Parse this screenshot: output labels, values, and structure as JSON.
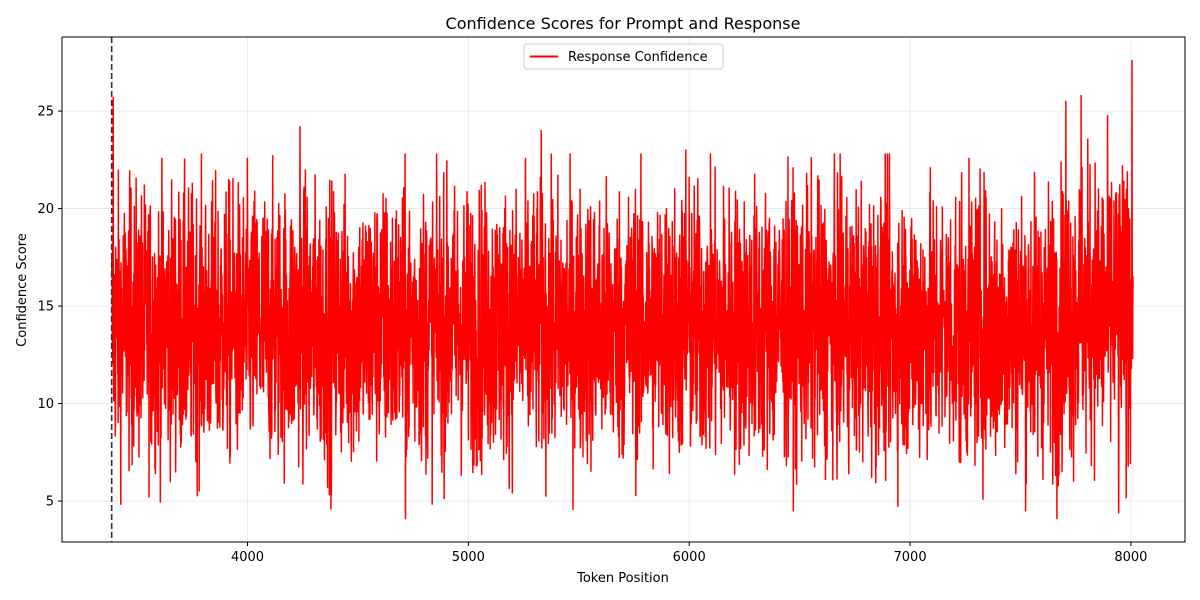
{
  "chart_data": {
    "type": "line",
    "title": "Confidence Scores for Prompt and Response",
    "xlabel": "Token Position",
    "ylabel": "Confidence Score",
    "xlim": [
      3160,
      8245
    ],
    "ylim": [
      2.9,
      28.8
    ],
    "xticks": [
      4000,
      5000,
      6000,
      7000,
      8000
    ],
    "yticks": [
      5,
      10,
      15,
      20,
      25
    ],
    "grid": true,
    "legend_position": "top-center",
    "vline": {
      "x": 3385,
      "style": "dashed",
      "color": "#333333"
    },
    "series": [
      {
        "name": "Response Confidence",
        "color": "#ff0000",
        "x_start": 3385,
        "x_end": 8010,
        "points": 4600,
        "typical_range": [
          5,
          23
        ],
        "mean": 14.5,
        "extremes": [
          {
            "x": 3392,
            "y": 25.7
          },
          {
            "x": 4238,
            "y": 24.2
          },
          {
            "x": 4378,
            "y": 4.6
          },
          {
            "x": 4715,
            "y": 4.1
          },
          {
            "x": 5330,
            "y": 24.0
          },
          {
            "x": 5985,
            "y": 23.0
          },
          {
            "x": 7665,
            "y": 4.1
          },
          {
            "x": 7705,
            "y": 25.5
          },
          {
            "x": 7775,
            "y": 25.8
          },
          {
            "x": 7945,
            "y": 4.4
          },
          {
            "x": 8005,
            "y": 27.6
          }
        ]
      }
    ]
  }
}
